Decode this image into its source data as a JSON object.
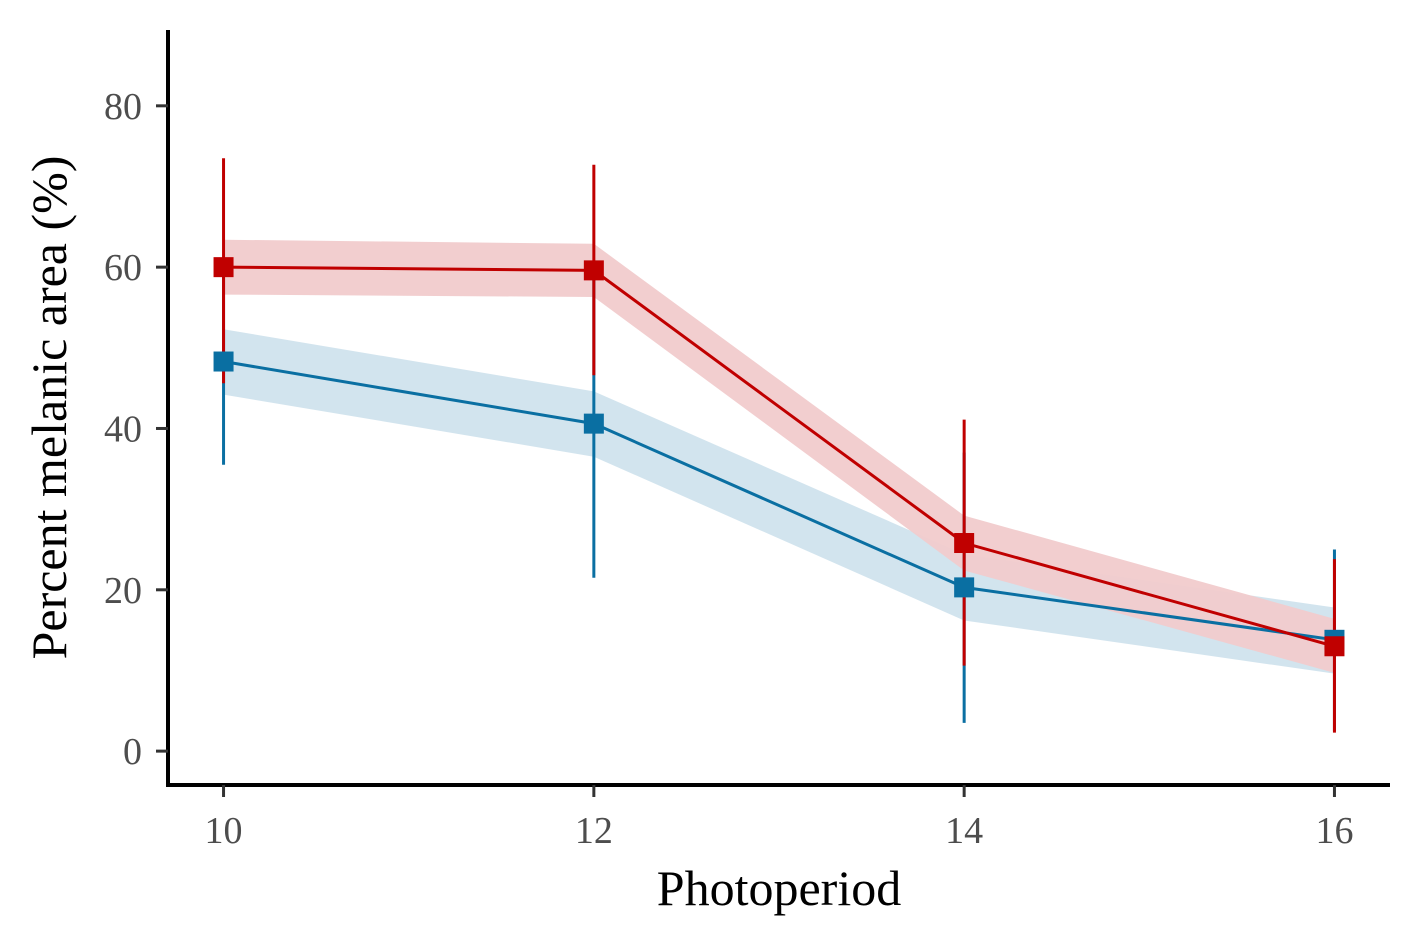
{
  "chart_data": {
    "type": "line",
    "title": "",
    "xlabel": "Photoperiod",
    "ylabel": "Percent melanic area (%)",
    "x": [
      10,
      12,
      14,
      16
    ],
    "x_ticks": [
      "10",
      "12",
      "14",
      "16"
    ],
    "y_ticks": [
      "0",
      "20",
      "40",
      "60",
      "80"
    ],
    "xlim": [
      9.7,
      16.3
    ],
    "ylim": [
      -4.2,
      89.4
    ],
    "grid": false,
    "legend": "none",
    "series": [
      {
        "color": "#0a6fa2",
        "band_color": "#d0e3ed",
        "values": [
          48.3,
          40.6,
          20.3,
          13.8
        ],
        "band_low": [
          44.2,
          36.5,
          16.2,
          9.6
        ],
        "band_high": [
          52.3,
          44.6,
          24.4,
          17.8
        ],
        "err_low": [
          35.5,
          21.5,
          3.5,
          2.5
        ],
        "err_high": [
          61.0,
          59.5,
          37.0,
          25.0
        ]
      },
      {
        "color": "#c00000",
        "band_color": "#f1cbcc",
        "values": [
          60.0,
          59.6,
          25.8,
          13.0
        ],
        "band_low": [
          56.6,
          56.3,
          22.4,
          9.7
        ],
        "band_high": [
          63.4,
          62.9,
          29.2,
          16.4
        ],
        "err_low": [
          45.6,
          46.6,
          10.6,
          2.3
        ],
        "err_high": [
          73.5,
          72.7,
          41.1,
          23.8
        ]
      }
    ]
  }
}
